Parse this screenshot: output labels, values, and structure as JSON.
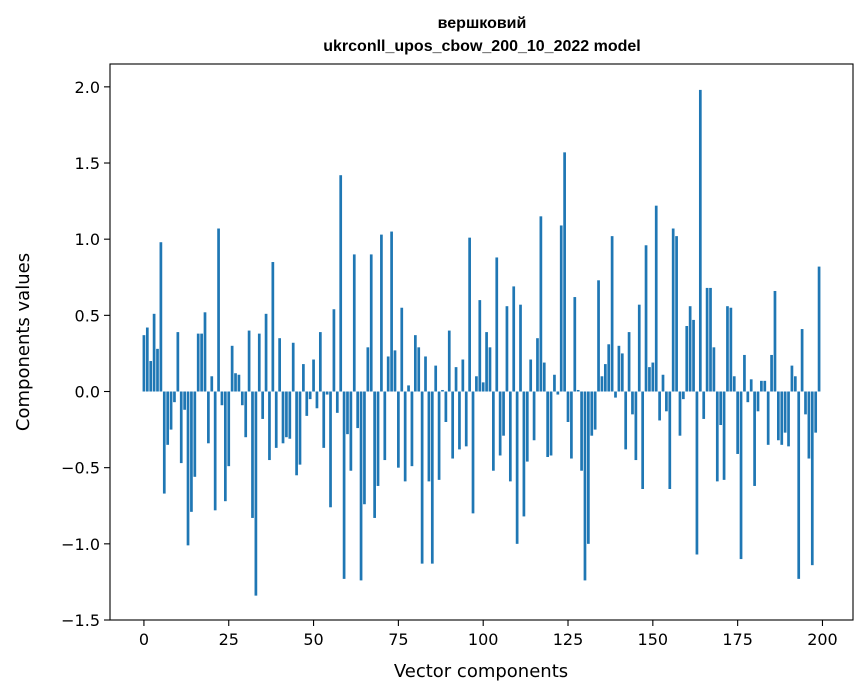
{
  "chart_data": {
    "type": "bar",
    "title": "вершковий",
    "subtitle": "ukrconll_upos_cbow_200_10_2022 model",
    "xlabel": "Vector components",
    "ylabel": "Components values",
    "xlim": [
      -10,
      209
    ],
    "ylim": [
      -1.5,
      2.15
    ],
    "x_ticks": [
      0,
      25,
      50,
      75,
      100,
      125,
      150,
      175,
      200
    ],
    "x_tick_labels": [
      "0",
      "25",
      "50",
      "75",
      "100",
      "125",
      "150",
      "175",
      "200"
    ],
    "y_ticks": [
      -1.5,
      -1.0,
      -0.5,
      0.0,
      0.5,
      1.0,
      1.5,
      2.0
    ],
    "y_tick_labels": [
      "−1.5",
      "−1.0",
      "−0.5",
      "0.0",
      "0.5",
      "1.0",
      "1.5",
      "2.0"
    ],
    "grid": false,
    "bar_color": "#1f77b4",
    "series": [
      {
        "name": "вершковий",
        "values": [
          0.37,
          0.42,
          0.2,
          0.51,
          0.28,
          0.98,
          -0.67,
          -0.35,
          -0.25,
          -0.07,
          0.39,
          -0.47,
          -0.12,
          -1.01,
          -0.79,
          -0.56,
          0.38,
          0.38,
          0.52,
          -0.34,
          0.1,
          -0.78,
          1.07,
          -0.09,
          -0.72,
          -0.49,
          0.3,
          0.12,
          0.11,
          -0.09,
          -0.3,
          0.4,
          -0.83,
          -1.34,
          0.38,
          -0.18,
          0.51,
          -0.45,
          0.85,
          -0.37,
          0.35,
          -0.34,
          -0.3,
          -0.31,
          0.32,
          -0.55,
          -0.48,
          0.18,
          -0.16,
          -0.05,
          0.21,
          -0.11,
          0.39,
          -0.37,
          -0.02,
          -0.76,
          0.54,
          -0.14,
          1.42,
          -1.23,
          -0.28,
          -0.52,
          0.9,
          -0.24,
          -1.24,
          -0.74,
          0.29,
          0.9,
          -0.83,
          -0.62,
          1.03,
          -0.45,
          0.23,
          1.05,
          0.27,
          -0.5,
          0.55,
          -0.59,
          0.04,
          -0.49,
          0.37,
          0.29,
          -1.13,
          0.23,
          -0.59,
          -1.13,
          0.17,
          -0.58,
          0.01,
          -0.2,
          0.4,
          -0.44,
          0.16,
          -0.38,
          0.21,
          -0.36,
          1.01,
          -0.8,
          0.1,
          0.6,
          0.06,
          0.39,
          0.29,
          -0.52,
          0.88,
          -0.42,
          -0.29,
          0.56,
          -0.59,
          0.69,
          -1.0,
          0.57,
          -0.82,
          -0.46,
          0.21,
          -0.32,
          0.35,
          1.15,
          0.19,
          -0.43,
          -0.42,
          0.11,
          -0.02,
          1.09,
          1.57,
          -0.2,
          -0.44,
          0.62,
          0.01,
          -0.52,
          -1.24,
          -1.0,
          -0.29,
          -0.25,
          0.73,
          0.1,
          0.18,
          0.31,
          1.02,
          -0.04,
          0.3,
          0.25,
          -0.38,
          0.39,
          -0.15,
          -0.45,
          0.57,
          -0.64,
          0.96,
          0.16,
          0.19,
          1.22,
          -0.19,
          0.11,
          -0.13,
          -0.64,
          1.07,
          1.02,
          -0.29,
          -0.05,
          0.43,
          0.56,
          0.47,
          -1.07,
          1.98,
          -0.18,
          0.68,
          0.68,
          0.29,
          -0.59,
          -0.22,
          -0.58,
          0.56,
          0.55,
          0.1,
          -0.41,
          -1.1,
          0.24,
          -0.07,
          0.08,
          -0.62,
          -0.13,
          0.07,
          0.07,
          -0.35,
          0.24,
          0.66,
          -0.32,
          -0.35,
          -0.27,
          -0.36,
          0.17,
          0.1,
          -1.23,
          0.41,
          -0.15,
          -0.44,
          -1.14,
          -0.27,
          0.82
        ]
      }
    ]
  }
}
